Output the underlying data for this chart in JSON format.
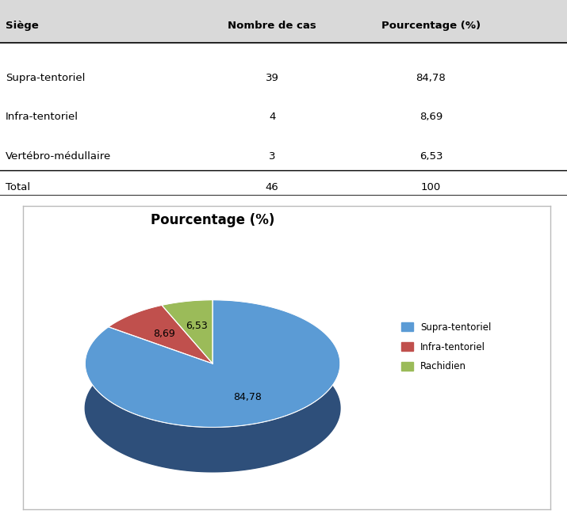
{
  "table_headers": [
    "Siège",
    "Nombre de cas",
    "Pourcentage (%)"
  ],
  "table_rows": [
    [
      "Supra-tentoriel",
      "39",
      "84,78"
    ],
    [
      "Infra-tentoriel",
      "4",
      "8,69"
    ],
    [
      "Vertébro-médullaire",
      "3",
      "6,53"
    ],
    [
      "Total",
      "46",
      "100"
    ]
  ],
  "pie_values": [
    84.78,
    8.69,
    6.53
  ],
  "pie_labels": [
    "84,78",
    "8,69",
    "6,53"
  ],
  "pie_colors": [
    "#5B9BD5",
    "#C0504D",
    "#9BBB59"
  ],
  "pie_shadow_colors": [
    "#2E4F7A",
    "#7A1F1C",
    "#5A7A28"
  ],
  "legend_labels": [
    "Supra-tentoriel",
    "Infra-tentoriel",
    "Rachidien"
  ],
  "pie_title": "Pourcentage (%)",
  "startangle": 90,
  "bg_color": "#FFFFFF",
  "header_bg": "#D9D9D9",
  "border_color": "#AAAAAA",
  "table_line_color": "#000000"
}
